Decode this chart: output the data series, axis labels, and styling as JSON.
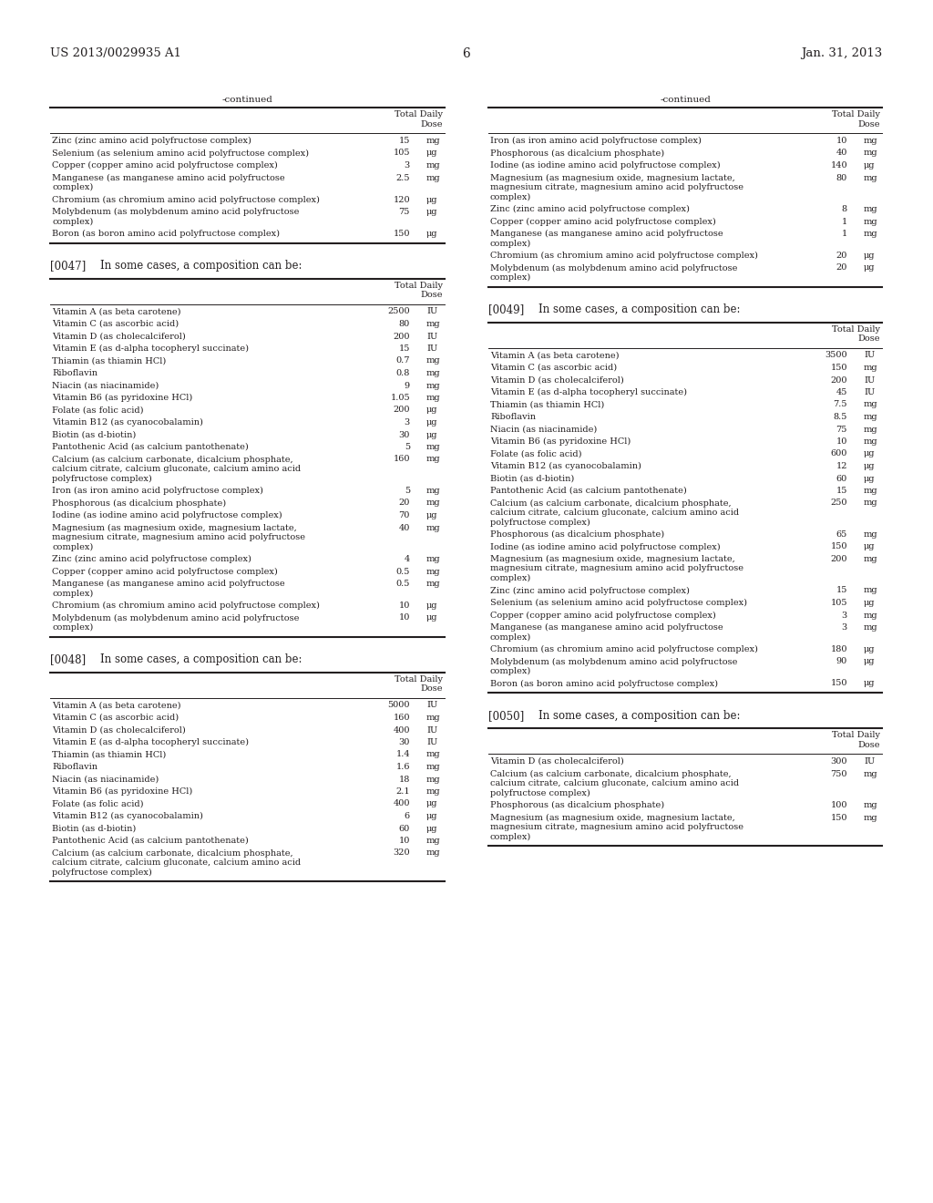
{
  "header_left": "US 2013/0029935 A1",
  "header_right": "Jan. 31, 2013",
  "page_number": "6",
  "background_color": "#ffffff",
  "text_color": "#231f20",
  "font_size": 7.0,
  "font_family": "DejaVu Serif"
}
